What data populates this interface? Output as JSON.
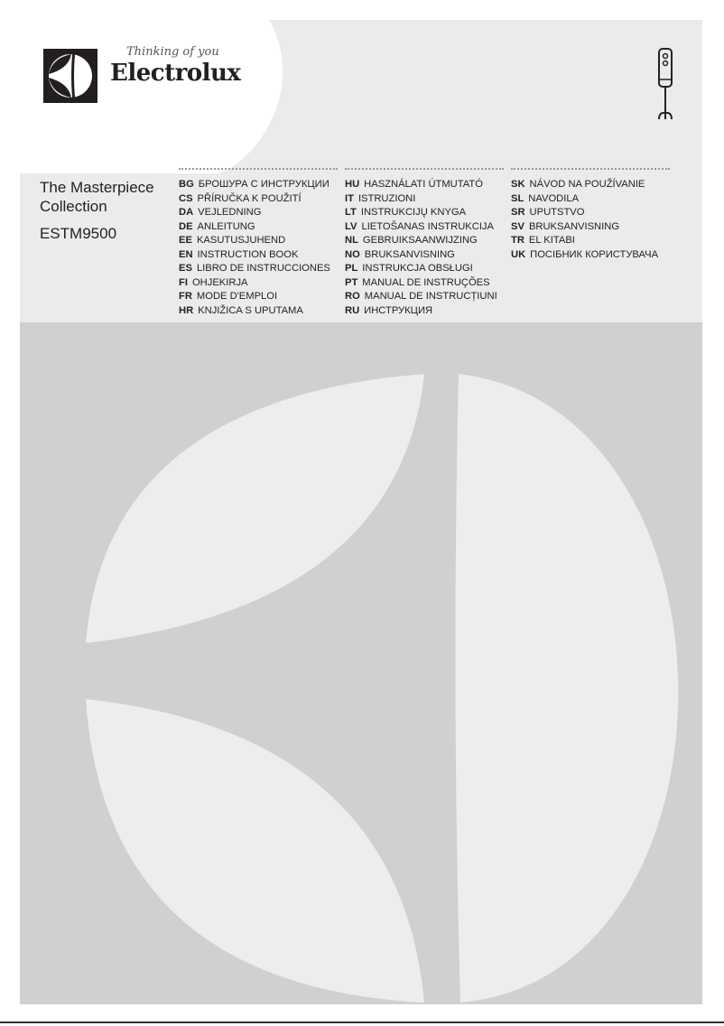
{
  "brand": {
    "name": "Electrolux",
    "tagline": "Thinking of you"
  },
  "product_icon": "hand-blender-icon",
  "title": "The Masterpiece Collection",
  "title_lines": [
    "The Masterpiece",
    "Collection"
  ],
  "model": "ESTM9500",
  "languages": [
    [
      {
        "code": "BG",
        "text": "БРОШУРА С ИНСТРУКЦИИ"
      },
      {
        "code": "CS",
        "text": "PŘÍRUČKA K POUŽITÍ"
      },
      {
        "code": "DA",
        "text": "VEJLEDNING"
      },
      {
        "code": "DE",
        "text": "ANLEITUNG"
      },
      {
        "code": "EE",
        "text": "KASUTUSJUHEND"
      },
      {
        "code": "EN",
        "text": "INSTRUCTION BOOK"
      },
      {
        "code": "ES",
        "text": "LIBRO DE INSTRUCCIONES"
      },
      {
        "code": "FI",
        "text": "OHJEKIRJA"
      },
      {
        "code": "FR",
        "text": "MODE D'EMPLOI"
      },
      {
        "code": "HR",
        "text": "KNJIŽICA S UPUTAMA"
      }
    ],
    [
      {
        "code": "HU",
        "text": "HASZNÁLATI ÚTMUTATÓ"
      },
      {
        "code": "IT",
        "text": "ISTRUZIONI"
      },
      {
        "code": "LT",
        "text": "INSTRUKCIJŲ KNYGA"
      },
      {
        "code": "LV",
        "text": "LIETOŠANAS INSTRUKCIJA"
      },
      {
        "code": "NL",
        "text": "GEBRUIKSAANWIJZING"
      },
      {
        "code": "NO",
        "text": "BRUKSANVISNING"
      },
      {
        "code": "PL",
        "text": "INSTRUKCJA OBSŁUGI"
      },
      {
        "code": "PT",
        "text": "MANUAL DE INSTRUÇÕES"
      },
      {
        "code": "RO",
        "text": "MANUAL DE INSTRUCȚIUNI"
      },
      {
        "code": "RU",
        "text": "ИНСТРУКЦИЯ"
      }
    ],
    [
      {
        "code": "SK",
        "text": "NÁVOD NA POUŽÍVANIE"
      },
      {
        "code": "SL",
        "text": "NAVODILA"
      },
      {
        "code": "SR",
        "text": "UPUTSTVO"
      },
      {
        "code": "SV",
        "text": "BRUKSANVISNING"
      },
      {
        "code": "TR",
        "text": "EL KITABI"
      },
      {
        "code": "UK",
        "text": "ПОСІБНИК КОРИСТУВАЧА"
      }
    ]
  ],
  "colors": {
    "background": "#ebebeb",
    "lower_panel": "#d0d0d0",
    "logo_shapes": "#ededed",
    "logo_box": "#231f20"
  }
}
